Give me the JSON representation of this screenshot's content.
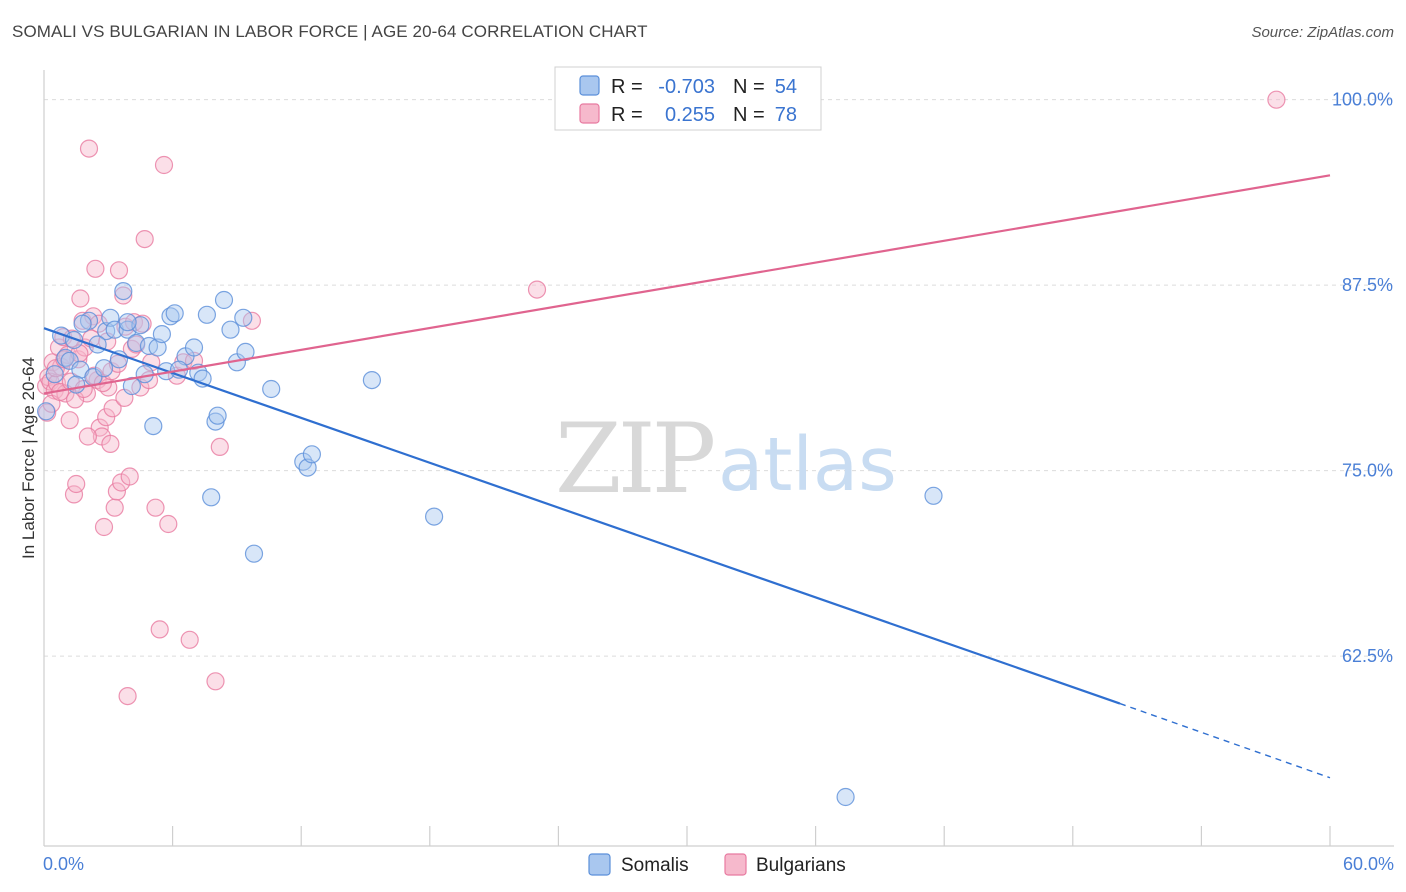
{
  "title": "SOMALI VS BULGARIAN IN LABOR FORCE | AGE 20-64 CORRELATION CHART",
  "source": "Source: ZipAtlas.com",
  "watermark": {
    "zip": "ZIP",
    "atlas": "atlas"
  },
  "legend": {
    "r_label": "R =",
    "n_label": "N =",
    "somali": {
      "r": "-0.703",
      "n": "54"
    },
    "bulgarian": {
      "r": "0.255",
      "n": "78"
    }
  },
  "colors": {
    "somali_fill": "#a9c7ef",
    "somali_stroke": "#5b8fd9",
    "somali_line": "#2f6fd0",
    "bulgarian_fill": "#f6b9cc",
    "bulgarian_stroke": "#e87aa0",
    "bulgarian_line": "#e0648f"
  },
  "chart_data": {
    "type": "scatter",
    "title": "SOMALI VS BULGARIAN IN LABOR FORCE | AGE 20-64 CORRELATION CHART",
    "xlabel": "",
    "ylabel": "In Labor Force | Age 20-64",
    "xlim": [
      0,
      60
    ],
    "ylim": [
      49.7,
      102
    ],
    "x_tick_labels": [
      "0.0%",
      "60.0%"
    ],
    "y_ticks": [
      62.5,
      75.0,
      87.5,
      100.0
    ],
    "y_tick_labels": [
      "62.5%",
      "75.0%",
      "87.5%",
      "100.0%"
    ],
    "grid": true,
    "legend": [
      "Somalis",
      "Bulgarians"
    ],
    "series": [
      {
        "name": "Somalis",
        "r": -0.703,
        "n": 54,
        "trend": {
          "x0": 0,
          "y0": 84.6,
          "x1": 50.2,
          "y1": 59.3,
          "dashed_to_x": 60,
          "dashed_to_y": 54.3
        },
        "points": [
          [
            0.1,
            79.0
          ],
          [
            0.8,
            84.1
          ],
          [
            1.0,
            82.6
          ],
          [
            1.2,
            82.4
          ],
          [
            1.4,
            83.8
          ],
          [
            1.7,
            81.8
          ],
          [
            2.1,
            85.1
          ],
          [
            2.3,
            81.3
          ],
          [
            2.8,
            81.9
          ],
          [
            2.9,
            84.4
          ],
          [
            3.1,
            85.3
          ],
          [
            3.3,
            84.5
          ],
          [
            3.5,
            82.5
          ],
          [
            3.7,
            87.1
          ],
          [
            3.9,
            84.5
          ],
          [
            4.1,
            80.7
          ],
          [
            4.3,
            83.6
          ],
          [
            4.5,
            84.8
          ],
          [
            4.7,
            81.5
          ],
          [
            4.9,
            83.4
          ],
          [
            5.1,
            78.0
          ],
          [
            5.3,
            83.3
          ],
          [
            5.5,
            84.2
          ],
          [
            5.7,
            81.7
          ],
          [
            5.9,
            85.4
          ],
          [
            6.1,
            85.6
          ],
          [
            6.6,
            82.7
          ],
          [
            7.0,
            83.3
          ],
          [
            7.2,
            81.6
          ],
          [
            7.4,
            81.2
          ],
          [
            7.6,
            85.5
          ],
          [
            7.8,
            73.2
          ],
          [
            8.0,
            78.3
          ],
          [
            8.1,
            78.7
          ],
          [
            8.4,
            86.5
          ],
          [
            8.7,
            84.5
          ],
          [
            9.0,
            82.3
          ],
          [
            9.3,
            85.3
          ],
          [
            9.4,
            83.0
          ],
          [
            9.8,
            69.4
          ],
          [
            10.6,
            80.5
          ],
          [
            12.1,
            75.6
          ],
          [
            12.3,
            75.2
          ],
          [
            12.5,
            76.1
          ],
          [
            15.3,
            81.1
          ],
          [
            18.2,
            71.9
          ],
          [
            37.4,
            53.0
          ],
          [
            41.5,
            73.3
          ],
          [
            1.8,
            84.9
          ],
          [
            2.5,
            83.5
          ],
          [
            0.5,
            81.5
          ],
          [
            1.5,
            80.8
          ],
          [
            6.3,
            81.8
          ],
          [
            3.9,
            85.0
          ]
        ]
      },
      {
        "name": "Bulgarians",
        "r": 0.255,
        "n": 78,
        "trend": {
          "x0": 0,
          "y0": 80.2,
          "x1": 60,
          "y1": 94.9
        },
        "points": [
          [
            0.1,
            80.7
          ],
          [
            0.2,
            81.3
          ],
          [
            0.3,
            81.0
          ],
          [
            0.4,
            82.3
          ],
          [
            0.5,
            80.4
          ],
          [
            0.6,
            80.9
          ],
          [
            0.7,
            83.3
          ],
          [
            0.8,
            82.0
          ],
          [
            0.9,
            84.0
          ],
          [
            1.0,
            80.2
          ],
          [
            1.1,
            82.8
          ],
          [
            1.2,
            78.4
          ],
          [
            1.3,
            83.9
          ],
          [
            1.4,
            73.4
          ],
          [
            1.5,
            74.1
          ],
          [
            1.6,
            82.5
          ],
          [
            1.7,
            86.6
          ],
          [
            1.8,
            85.1
          ],
          [
            1.9,
            83.3
          ],
          [
            2.0,
            80.2
          ],
          [
            2.1,
            96.7
          ],
          [
            2.2,
            83.9
          ],
          [
            2.3,
            85.4
          ],
          [
            2.4,
            88.6
          ],
          [
            2.5,
            81.1
          ],
          [
            2.6,
            77.9
          ],
          [
            2.7,
            77.3
          ],
          [
            2.8,
            71.2
          ],
          [
            2.9,
            78.6
          ],
          [
            3.0,
            80.6
          ],
          [
            3.1,
            76.8
          ],
          [
            3.2,
            79.2
          ],
          [
            3.3,
            72.5
          ],
          [
            3.4,
            73.6
          ],
          [
            3.5,
            88.5
          ],
          [
            3.6,
            74.2
          ],
          [
            3.7,
            86.8
          ],
          [
            3.8,
            84.7
          ],
          [
            3.9,
            59.8
          ],
          [
            4.0,
            74.6
          ],
          [
            4.1,
            83.2
          ],
          [
            4.2,
            85.0
          ],
          [
            4.3,
            83.5
          ],
          [
            4.5,
            80.6
          ],
          [
            4.6,
            84.9
          ],
          [
            4.7,
            90.6
          ],
          [
            4.9,
            81.1
          ],
          [
            5.0,
            82.3
          ],
          [
            5.2,
            72.5
          ],
          [
            5.4,
            64.3
          ],
          [
            5.6,
            95.6
          ],
          [
            5.8,
            71.4
          ],
          [
            6.2,
            81.4
          ],
          [
            6.5,
            82.3
          ],
          [
            6.8,
            63.6
          ],
          [
            7.0,
            82.4
          ],
          [
            8.0,
            60.8
          ],
          [
            8.2,
            76.6
          ],
          [
            9.7,
            85.1
          ],
          [
            23.0,
            87.2
          ],
          [
            57.5,
            100.0
          ],
          [
            0.15,
            78.9
          ],
          [
            0.35,
            79.5
          ],
          [
            0.55,
            81.9
          ],
          [
            0.75,
            80.3
          ],
          [
            0.95,
            82.5
          ],
          [
            1.25,
            81.0
          ],
          [
            1.45,
            79.8
          ],
          [
            1.65,
            82.9
          ],
          [
            1.85,
            80.5
          ],
          [
            2.05,
            77.3
          ],
          [
            2.35,
            81.4
          ],
          [
            2.55,
            84.9
          ],
          [
            2.75,
            80.9
          ],
          [
            2.95,
            83.7
          ],
          [
            3.15,
            81.7
          ],
          [
            3.45,
            82.2
          ],
          [
            3.75,
            79.9
          ]
        ]
      }
    ]
  }
}
